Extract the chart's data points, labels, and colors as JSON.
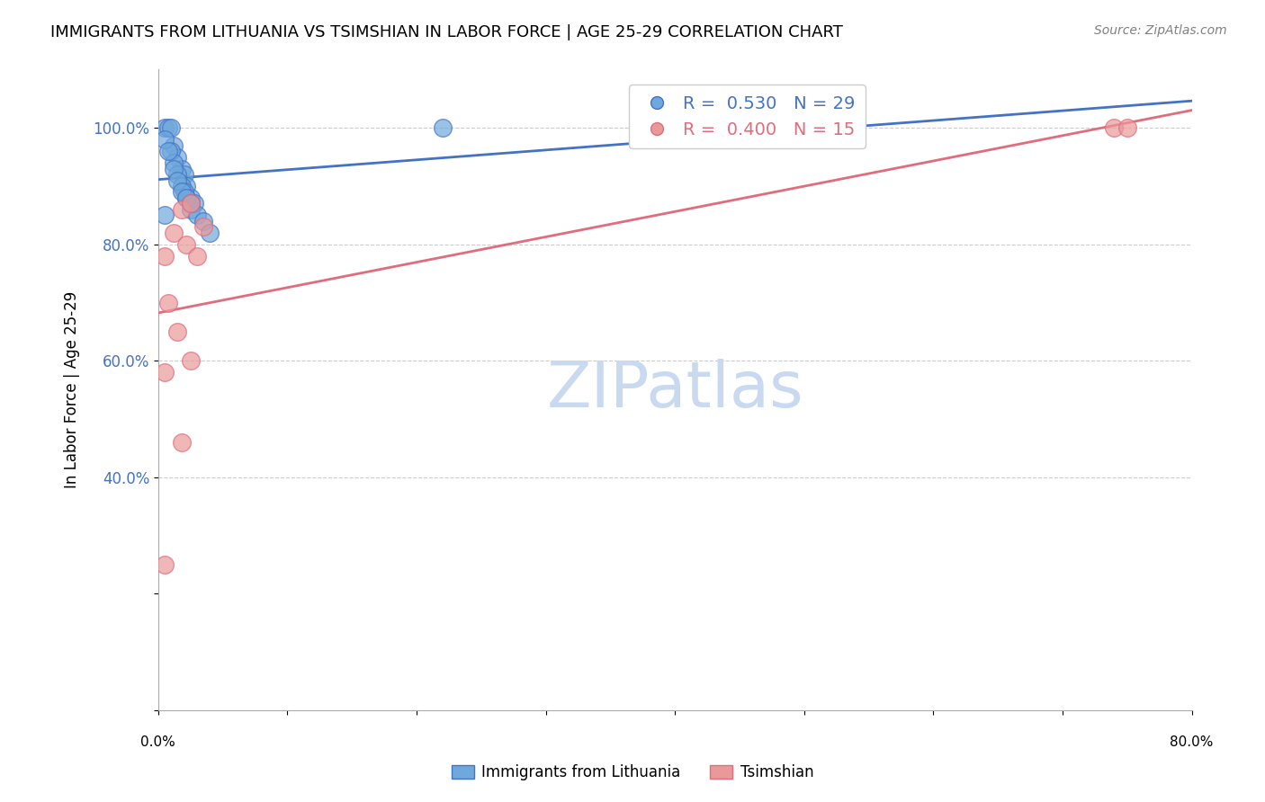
{
  "title": "IMMIGRANTS FROM LITHUANIA VS TSIMSHIAN IN LABOR FORCE | AGE 25-29 CORRELATION CHART",
  "source": "Source: ZipAtlas.com",
  "ylabel": "In Labor Force | Age 25-29",
  "y_ticks": [
    0.0,
    0.2,
    0.4,
    0.6,
    0.8,
    1.0
  ],
  "y_tick_labels": [
    "",
    "",
    "40.0%",
    "60.0%",
    "80.0%",
    "100.0%"
  ],
  "xlim": [
    0.0,
    0.8
  ],
  "ylim": [
    0.0,
    1.1
  ],
  "color_blue": "#6fa8dc",
  "color_pink": "#ea9999",
  "color_blue_line": "#4472c4",
  "color_pink_line": "#e06c7d",
  "color_axis": "#aaaaaa",
  "color_grid": "#cccccc",
  "color_ytick_labels": "#4472c4",
  "watermark_color": "#c9d9f0",
  "blue_points_x": [
    0.005,
    0.008,
    0.01,
    0.012,
    0.015,
    0.018,
    0.02,
    0.022,
    0.025,
    0.028,
    0.01,
    0.012,
    0.015,
    0.018,
    0.02,
    0.022,
    0.025,
    0.03,
    0.035,
    0.04,
    0.005,
    0.008,
    0.012,
    0.015,
    0.018,
    0.022,
    0.025,
    0.22,
    0.005
  ],
  "blue_points_y": [
    1.0,
    1.0,
    1.0,
    0.97,
    0.95,
    0.93,
    0.92,
    0.9,
    0.88,
    0.87,
    0.96,
    0.94,
    0.92,
    0.9,
    0.89,
    0.88,
    0.86,
    0.85,
    0.84,
    0.82,
    0.98,
    0.96,
    0.93,
    0.91,
    0.89,
    0.88,
    0.87,
    1.0,
    0.85
  ],
  "pink_points_x": [
    0.005,
    0.012,
    0.018,
    0.025,
    0.035,
    0.008,
    0.015,
    0.022,
    0.03,
    0.005,
    0.018,
    0.025,
    0.74,
    0.75,
    0.005
  ],
  "pink_points_y": [
    0.78,
    0.82,
    0.86,
    0.87,
    0.83,
    0.7,
    0.65,
    0.8,
    0.78,
    0.58,
    0.46,
    0.6,
    1.0,
    1.0,
    0.25
  ],
  "blue_line_x": [
    0.0,
    0.8
  ],
  "pink_line_x": [
    0.0,
    0.8
  ]
}
